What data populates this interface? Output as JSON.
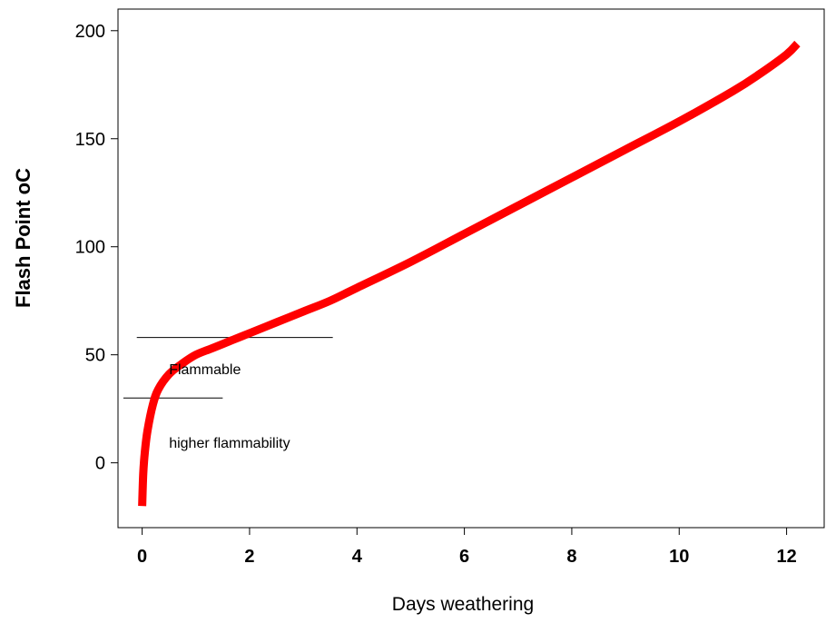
{
  "chart_data": {
    "type": "line",
    "xlabel": "Days weathering",
    "ylabel": "Flash Point  oC",
    "xlim": [
      -0.45,
      12.7
    ],
    "ylim": [
      -30,
      210
    ],
    "x_ticks": [
      0,
      2,
      4,
      6,
      8,
      10,
      12
    ],
    "y_ticks": [
      0,
      50,
      100,
      150,
      200
    ],
    "grid": false,
    "series": [
      {
        "color": "#ff0000",
        "x": [
          0,
          0.02,
          0.05,
          0.1,
          0.2,
          0.3,
          0.5,
          0.75,
          1.0,
          1.3,
          1.7,
          2.0,
          2.5,
          3.0,
          3.5,
          4.0,
          5.0,
          6.0,
          7.0,
          8.0,
          9.0,
          10.0,
          11.0,
          11.5,
          12.0,
          12.2
        ],
        "y": [
          -20,
          -5,
          5,
          15,
          27,
          34,
          41,
          46,
          50,
          53,
          57,
          60,
          65,
          70,
          75,
          81,
          93,
          106,
          119,
          132,
          145,
          158,
          172,
          180,
          189,
          194
        ]
      }
    ],
    "reference_lines": [
      {
        "y": 58,
        "x_start": -0.1,
        "x_end": 3.55
      },
      {
        "y": 30,
        "x_start": -0.35,
        "x_end": 1.5
      }
    ],
    "annotations": [
      {
        "text": "Flammable",
        "x": 0.5,
        "y": 41
      },
      {
        "text": "higher flammability",
        "x": 0.5,
        "y": 7
      }
    ]
  }
}
